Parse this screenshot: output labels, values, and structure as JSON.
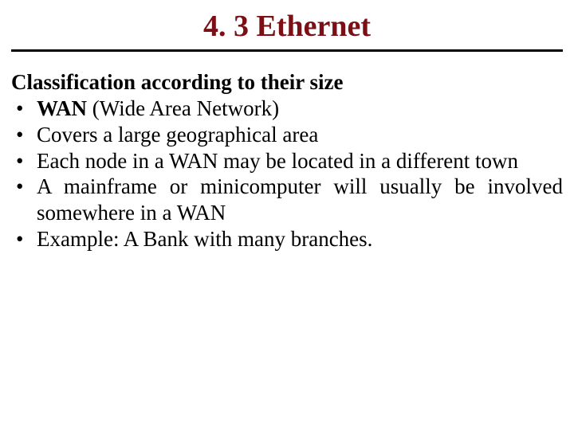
{
  "colors": {
    "title_color": "#7a1016",
    "rule_color": "#000000",
    "body_text_color": "#000000",
    "background_color": "#ffffff"
  },
  "typography": {
    "title_fontsize_pt": 29,
    "body_fontsize_pt": 20,
    "font_family": "Times New Roman"
  },
  "title": "4. 3 Ethernet",
  "subheading": "Classification  according to their size",
  "bullets": [
    {
      "bold": "WAN",
      "rest": " (Wide Area Network)"
    },
    {
      "text": "Covers a large geographical area"
    },
    {
      "text": "Each node in a WAN may be located in a different town"
    },
    {
      "text": "A mainframe or minicomputer will usually be involved somewhere in a WAN"
    },
    {
      "text": "Example: A Bank with many branches."
    }
  ]
}
